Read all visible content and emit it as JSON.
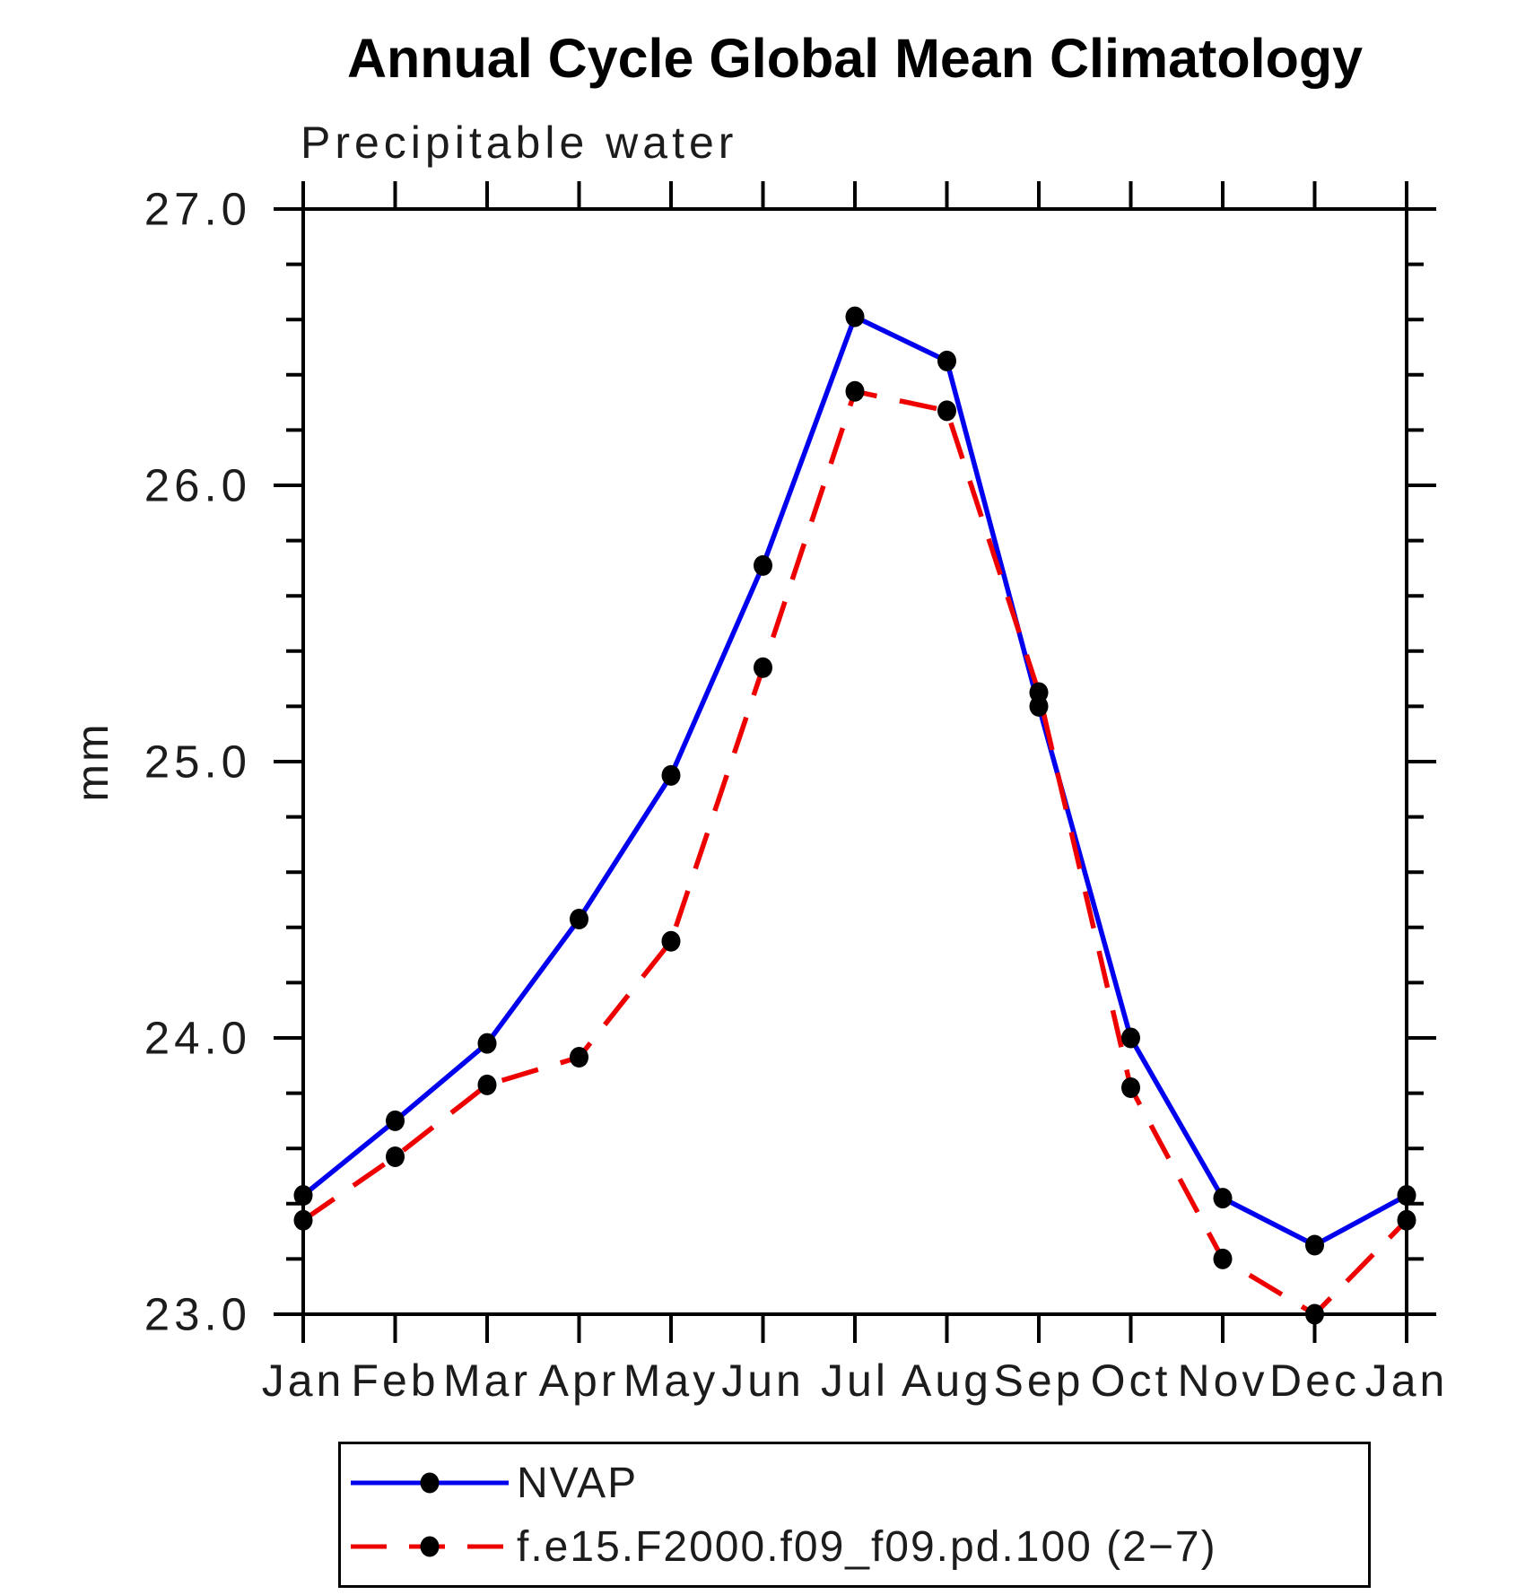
{
  "chart_data": {
    "type": "line",
    "title": "Annual Cycle Global Mean Climatology",
    "subtitle": "Precipitable water",
    "ylabel": "mm",
    "xlabel": "",
    "x_labels": [
      "Jan",
      "Feb",
      "Mar",
      "Apr",
      "May",
      "Jun",
      "Jul",
      "Aug",
      "Sep",
      "Oct",
      "Nov",
      "Dec",
      "Jan"
    ],
    "ylim": [
      23.0,
      27.0
    ],
    "y_major_step": 1.0,
    "y_minor_step": 0.2,
    "y_tick_labels": [
      "23.0",
      "24.0",
      "25.0",
      "26.0",
      "27.0"
    ],
    "grid": false,
    "legend_position": "bottom",
    "marker": "black-dot",
    "marker_color": "#000000",
    "axis_color": "#000000",
    "series": [
      {
        "name": "NVAP",
        "color": "#0000ee",
        "style": "solid",
        "values": [
          23.43,
          23.7,
          23.98,
          24.43,
          24.95,
          25.71,
          26.61,
          26.45,
          25.2,
          24.0,
          23.42,
          23.25,
          23.43
        ]
      },
      {
        "name": "f.e15.F2000.f09_f09.pd.100 (2−7)",
        "color": "#ee0000",
        "style": "dashed",
        "values": [
          23.34,
          23.57,
          23.83,
          23.93,
          24.35,
          25.34,
          26.34,
          26.27,
          25.25,
          23.82,
          23.2,
          23.0,
          23.34
        ]
      }
    ]
  }
}
